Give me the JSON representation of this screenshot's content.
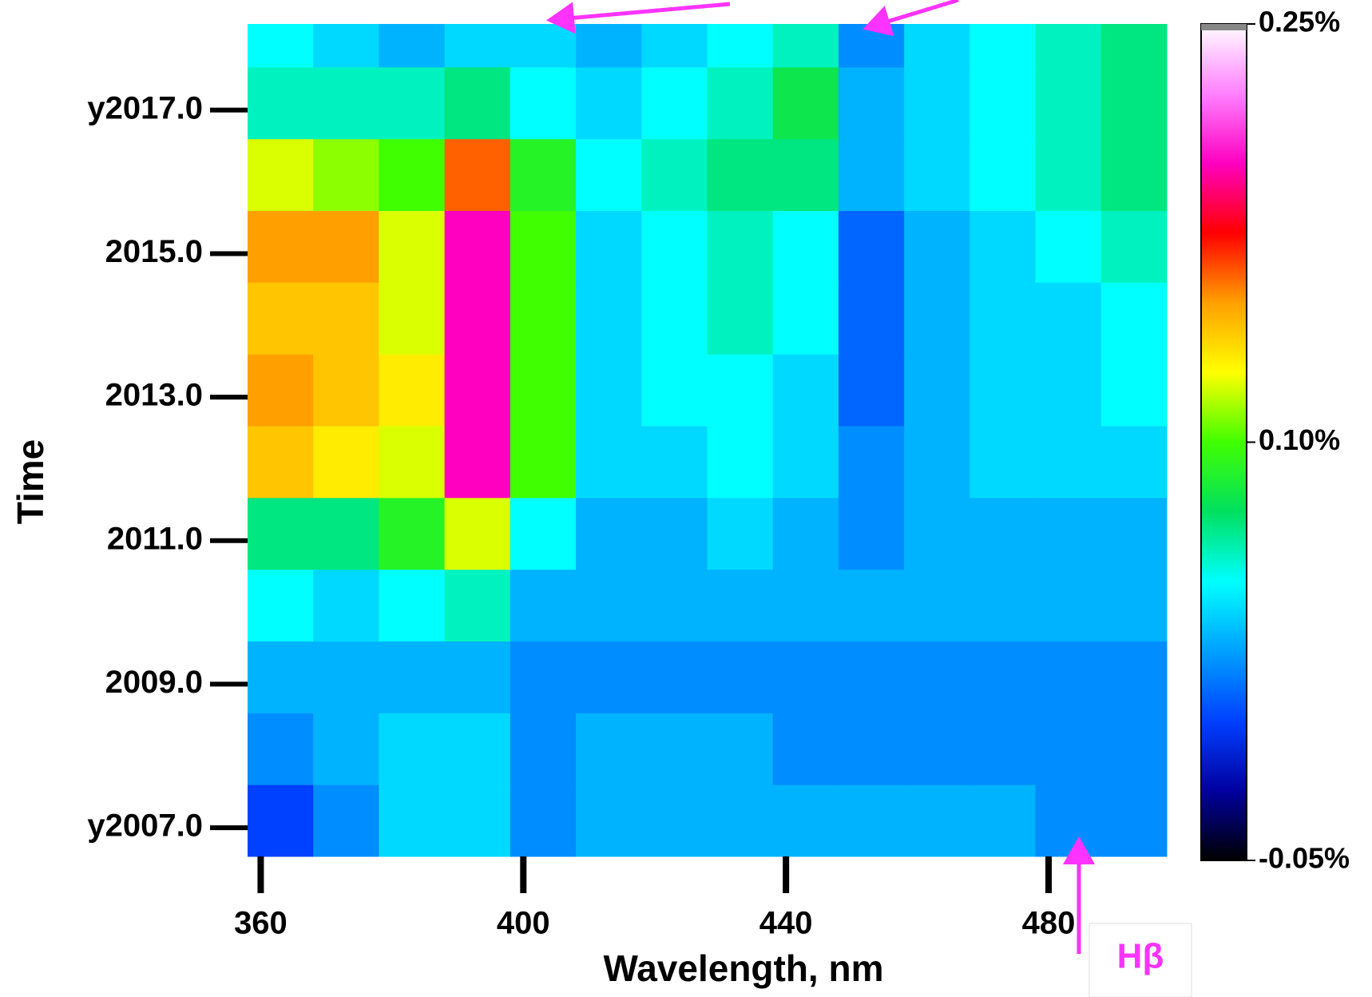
{
  "chart_data": {
    "type": "heatmap",
    "x_label": "Wavelength, nm",
    "y_label": "Time",
    "annotation": "Hβ",
    "x_edges": [
      358,
      368,
      378,
      388,
      398,
      408,
      418,
      428,
      438,
      448,
      458,
      468,
      478,
      488,
      498
    ],
    "y_edges": [
      2006.6,
      2007.6,
      2008.6,
      2009.6,
      2010.6,
      2011.6,
      2012.6,
      2013.6,
      2014.6,
      2015.6,
      2016.6,
      2017.6,
      2018.2
    ],
    "values": [
      [
        0.0,
        0.02,
        0.04,
        0.04,
        0.02,
        0.03,
        0.03,
        0.03,
        0.03,
        0.03,
        0.03,
        0.03,
        0.02,
        0.02
      ],
      [
        0.02,
        0.03,
        0.04,
        0.04,
        0.02,
        0.03,
        0.03,
        0.03,
        0.02,
        0.02,
        0.02,
        0.02,
        0.02,
        0.02
      ],
      [
        0.03,
        0.03,
        0.03,
        0.03,
        0.02,
        0.02,
        0.02,
        0.02,
        0.02,
        0.02,
        0.02,
        0.02,
        0.02,
        0.02
      ],
      [
        0.05,
        0.04,
        0.05,
        0.06,
        0.03,
        0.03,
        0.03,
        0.03,
        0.03,
        0.03,
        0.03,
        0.03,
        0.03,
        0.03
      ],
      [
        0.07,
        0.07,
        0.09,
        0.12,
        0.05,
        0.03,
        0.03,
        0.04,
        0.03,
        0.02,
        0.03,
        0.03,
        0.03,
        0.03
      ],
      [
        0.14,
        0.13,
        0.12,
        0.2,
        0.1,
        0.04,
        0.04,
        0.05,
        0.04,
        0.02,
        0.03,
        0.04,
        0.04,
        0.04
      ],
      [
        0.15,
        0.14,
        0.13,
        0.2,
        0.1,
        0.04,
        0.05,
        0.05,
        0.04,
        0.01,
        0.03,
        0.04,
        0.04,
        0.05
      ],
      [
        0.14,
        0.14,
        0.12,
        0.2,
        0.1,
        0.04,
        0.05,
        0.06,
        0.05,
        0.01,
        0.03,
        0.04,
        0.04,
        0.05
      ],
      [
        0.15,
        0.15,
        0.12,
        0.2,
        0.1,
        0.04,
        0.05,
        0.06,
        0.05,
        0.01,
        0.03,
        0.04,
        0.05,
        0.06
      ],
      [
        0.12,
        0.11,
        0.1,
        0.16,
        0.09,
        0.05,
        0.06,
        0.07,
        0.07,
        0.03,
        0.04,
        0.05,
        0.06,
        0.07
      ],
      [
        0.06,
        0.06,
        0.06,
        0.07,
        0.05,
        0.04,
        0.05,
        0.06,
        0.08,
        0.03,
        0.04,
        0.05,
        0.06,
        0.07
      ],
      [
        0.05,
        0.04,
        0.03,
        0.04,
        0.04,
        0.03,
        0.04,
        0.05,
        0.06,
        0.02,
        0.04,
        0.05,
        0.06,
        0.07
      ]
    ],
    "xlim": [
      358,
      498
    ],
    "ylim": [
      2006.6,
      2018.2
    ],
    "xticks": [
      360,
      400,
      440,
      480
    ],
    "yticks": [
      {
        "value": 2007,
        "label": "y2007.0"
      },
      {
        "value": 2009,
        "label": "2009.0"
      },
      {
        "value": 2011,
        "label": "2011.0"
      },
      {
        "value": 2013,
        "label": "2013.0"
      },
      {
        "value": 2015,
        "label": "2015.0"
      },
      {
        "value": 2017,
        "label": "y2017.0"
      }
    ],
    "zlim": [
      -0.05,
      0.25
    ],
    "zticks": [
      {
        "value": -0.05,
        "label": "-0.05%"
      },
      {
        "value": 0.1,
        "label": "0.10%"
      },
      {
        "value": 0.25,
        "label": "0.25%"
      }
    ],
    "colorscale": [
      "#000000",
      "#0000a0",
      "#0040ff",
      "#00a0ff",
      "#00ffff",
      "#00e060",
      "#40ff00",
      "#ffff00",
      "#ffa000",
      "#ff0000",
      "#ff00c0",
      "#ff80ff",
      "#ffffff"
    ]
  }
}
